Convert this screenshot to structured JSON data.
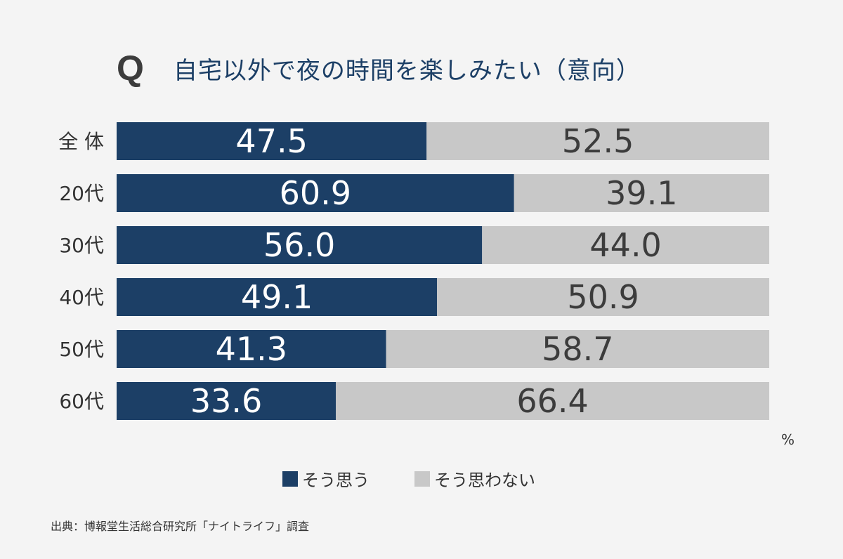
{
  "title": {
    "q_mark": "Q",
    "text": "自宅以外で夜の時間を楽しみたい（意向）"
  },
  "chart_data": {
    "type": "bar",
    "stacked": true,
    "orientation": "horizontal",
    "categories": [
      "全 体",
      "20代",
      "30代",
      "40代",
      "50代",
      "60代"
    ],
    "series": [
      {
        "name": "そう思う",
        "values": [
          47.5,
          60.9,
          56.0,
          49.1,
          41.3,
          33.6
        ],
        "color": "#1c3f66",
        "label_color": "#ffffff"
      },
      {
        "name": "そう思わない",
        "values": [
          52.5,
          39.1,
          44.0,
          50.9,
          58.7,
          66.4
        ],
        "color": "#c8c8c8",
        "label_color": "#3c3c3c"
      }
    ],
    "xlim": [
      0,
      100
    ],
    "unit": "%",
    "legend_position": "bottom-center"
  },
  "legend": [
    {
      "label": "そう思う",
      "color": "#1c3f66"
    },
    {
      "label": "そう思わない",
      "color": "#c8c8c8"
    }
  ],
  "source": "出典：博報堂生活総合研究所「ナイトライフ」調査"
}
